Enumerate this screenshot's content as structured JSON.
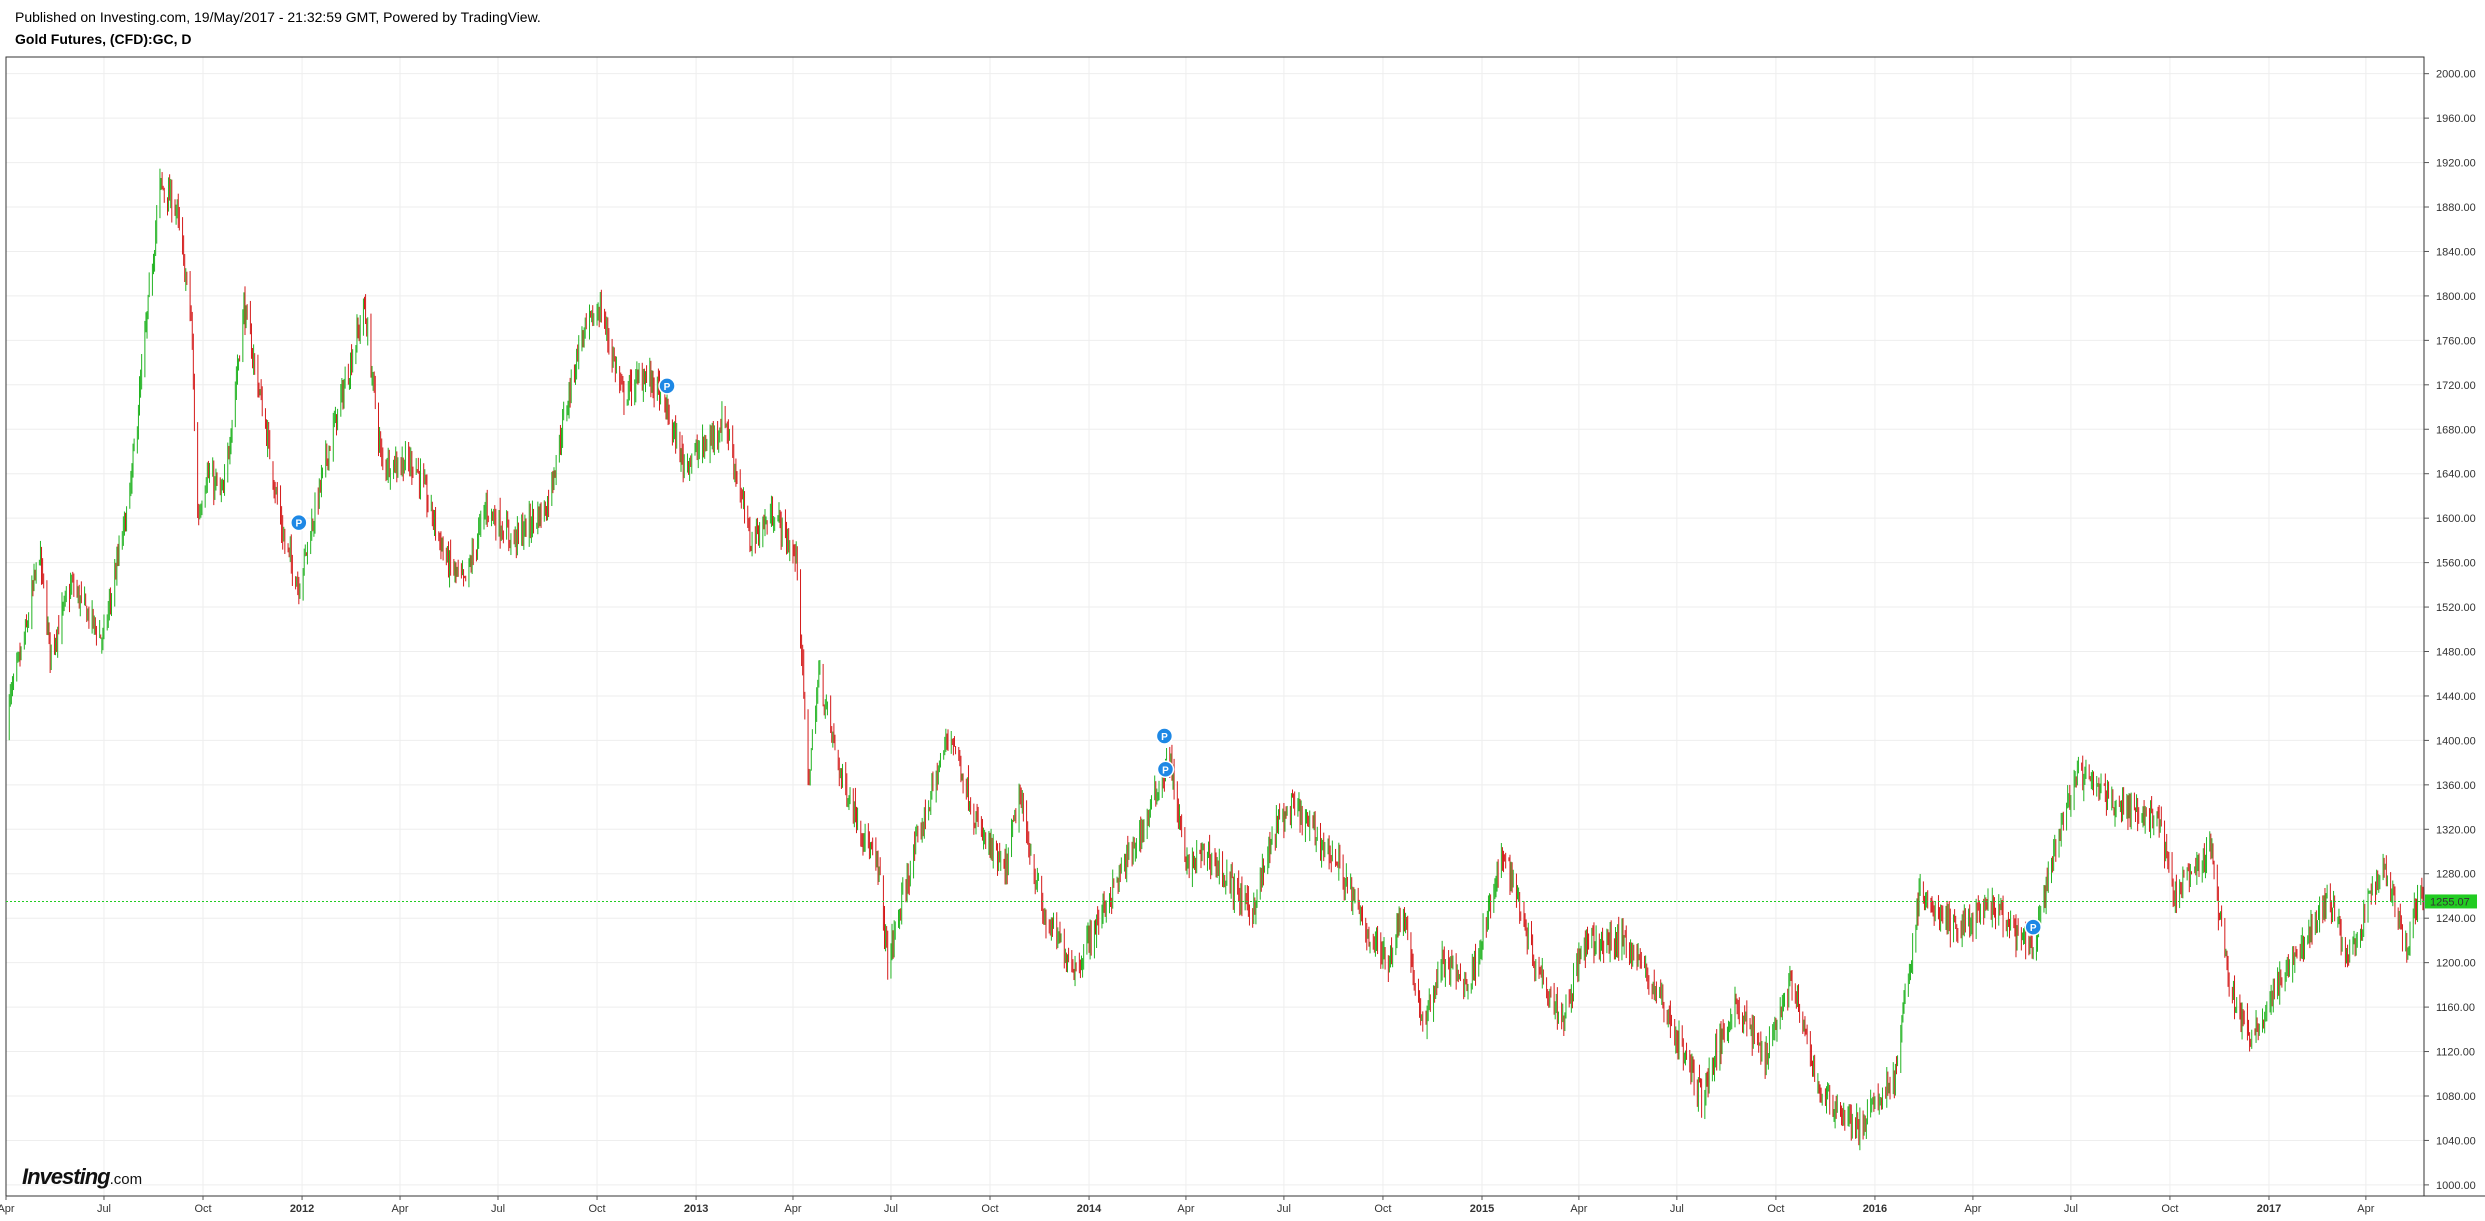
{
  "header": {
    "published": "Published on Investing.com, 19/May/2017 - 21:32:59 GMT, Powered by TradingView.",
    "title": "Gold Futures, (CFD):GC, D"
  },
  "logo": {
    "brand": "Investing",
    "domain": ".com"
  },
  "colors": {
    "up": "#22b322",
    "down": "#d41a1a",
    "grid": "#eeeeee",
    "last_price_line": "#22cc22",
    "marker": "#1e88e5"
  },
  "chart_data": {
    "type": "candlestick",
    "symbol": "GC",
    "interval": "D",
    "ylim": [
      990,
      2015
    ],
    "y_ticks": [
      "2000.00",
      "1960.00",
      "1920.00",
      "1880.00",
      "1840.00",
      "1800.00",
      "1760.00",
      "1720.00",
      "1680.00",
      "1640.00",
      "1600.00",
      "1560.00",
      "1520.00",
      "1480.00",
      "1440.00",
      "1400.00",
      "1360.00",
      "1320.00",
      "1280.00",
      "1240.00",
      "1200.00",
      "1160.00",
      "1120.00",
      "1080.00",
      "1040.00",
      "1000.00"
    ],
    "x_range": [
      "2011-04-01",
      "2017-05-25"
    ],
    "x_ticks": [
      {
        "label": "Apr",
        "date": "2011-04-01",
        "bold": false
      },
      {
        "label": "Jul",
        "date": "2011-07-01",
        "bold": false
      },
      {
        "label": "Oct",
        "date": "2011-10-01",
        "bold": false
      },
      {
        "label": "2012",
        "date": "2012-01-01",
        "bold": true
      },
      {
        "label": "Apr",
        "date": "2012-04-01",
        "bold": false
      },
      {
        "label": "Jul",
        "date": "2012-07-01",
        "bold": false
      },
      {
        "label": "Oct",
        "date": "2012-10-01",
        "bold": false
      },
      {
        "label": "2013",
        "date": "2013-01-01",
        "bold": true
      },
      {
        "label": "Apr",
        "date": "2013-04-01",
        "bold": false
      },
      {
        "label": "Jul",
        "date": "2013-07-01",
        "bold": false
      },
      {
        "label": "Oct",
        "date": "2013-10-01",
        "bold": false
      },
      {
        "label": "2014",
        "date": "2014-01-01",
        "bold": true
      },
      {
        "label": "Apr",
        "date": "2014-04-01",
        "bold": false
      },
      {
        "label": "Jul",
        "date": "2014-07-01",
        "bold": false
      },
      {
        "label": "Oct",
        "date": "2014-10-01",
        "bold": false
      },
      {
        "label": "2015",
        "date": "2015-01-01",
        "bold": true
      },
      {
        "label": "Apr",
        "date": "2015-04-01",
        "bold": false
      },
      {
        "label": "Jul",
        "date": "2015-07-01",
        "bold": false
      },
      {
        "label": "Oct",
        "date": "2015-10-01",
        "bold": false
      },
      {
        "label": "2016",
        "date": "2016-01-01",
        "bold": true
      },
      {
        "label": "Apr",
        "date": "2016-04-01",
        "bold": false
      },
      {
        "label": "Jul",
        "date": "2016-07-01",
        "bold": false
      },
      {
        "label": "Oct",
        "date": "2016-10-01",
        "bold": false
      },
      {
        "label": "2017",
        "date": "2017-01-01",
        "bold": true
      },
      {
        "label": "Apr",
        "date": "2017-04-01",
        "bold": false
      }
    ],
    "last_price": 1255.07,
    "last_price_label": "1255.07",
    "price_path": [
      [
        "2011-04-01",
        1420
      ],
      [
        "2011-04-20",
        1500
      ],
      [
        "2011-05-02",
        1570
      ],
      [
        "2011-05-12",
        1480
      ],
      [
        "2011-06-01",
        1540
      ],
      [
        "2011-06-30",
        1490
      ],
      [
        "2011-07-25",
        1620
      ],
      [
        "2011-08-10",
        1780
      ],
      [
        "2011-08-22",
        1900
      ],
      [
        "2011-09-06",
        1880
      ],
      [
        "2011-09-20",
        1780
      ],
      [
        "2011-09-26",
        1600
      ],
      [
        "2011-10-04",
        1640
      ],
      [
        "2011-10-20",
        1620
      ],
      [
        "2011-11-08",
        1790
      ],
      [
        "2011-11-25",
        1700
      ],
      [
        "2011-12-15",
        1580
      ],
      [
        "2011-12-29",
        1540
      ],
      [
        "2012-01-25",
        1660
      ],
      [
        "2012-02-28",
        1790
      ],
      [
        "2012-03-15",
        1650
      ],
      [
        "2012-04-15",
        1650
      ],
      [
        "2012-05-15",
        1560
      ],
      [
        "2012-05-31",
        1540
      ],
      [
        "2012-06-20",
        1610
      ],
      [
        "2012-07-15",
        1580
      ],
      [
        "2012-08-15",
        1610
      ],
      [
        "2012-09-15",
        1760
      ],
      [
        "2012-10-04",
        1790
      ],
      [
        "2012-10-25",
        1710
      ],
      [
        "2012-11-15",
        1730
      ],
      [
        "2012-11-30",
        1710
      ],
      [
        "2012-12-20",
        1650
      ],
      [
        "2013-01-10",
        1665
      ],
      [
        "2013-01-28",
        1690
      ],
      [
        "2013-02-20",
        1580
      ],
      [
        "2013-03-15",
        1605
      ],
      [
        "2013-04-05",
        1560
      ],
      [
        "2013-04-15",
        1360
      ],
      [
        "2013-04-25",
        1460
      ],
      [
        "2013-05-15",
        1370
      ],
      [
        "2013-06-20",
        1280
      ],
      [
        "2013-06-28",
        1200
      ],
      [
        "2013-07-20",
        1290
      ],
      [
        "2013-08-25",
        1410
      ],
      [
        "2013-09-20",
        1320
      ],
      [
        "2013-10-15",
        1280
      ],
      [
        "2013-10-28",
        1350
      ],
      [
        "2013-11-20",
        1240
      ],
      [
        "2013-12-20",
        1195
      ],
      [
        "2014-01-15",
        1250
      ],
      [
        "2014-02-20",
        1320
      ],
      [
        "2014-03-17",
        1385
      ],
      [
        "2014-04-01",
        1285
      ],
      [
        "2014-04-20",
        1300
      ],
      [
        "2014-06-01",
        1245
      ],
      [
        "2014-06-25",
        1325
      ],
      [
        "2014-07-10",
        1340
      ],
      [
        "2014-08-20",
        1290
      ],
      [
        "2014-09-15",
        1230
      ],
      [
        "2014-10-05",
        1200
      ],
      [
        "2014-10-20",
        1250
      ],
      [
        "2014-11-06",
        1140
      ],
      [
        "2014-11-25",
        1200
      ],
      [
        "2014-12-20",
        1180
      ],
      [
        "2015-01-22",
        1300
      ],
      [
        "2015-02-20",
        1200
      ],
      [
        "2015-03-17",
        1150
      ],
      [
        "2015-04-05",
        1215
      ],
      [
        "2015-05-15",
        1220
      ],
      [
        "2015-06-15",
        1170
      ],
      [
        "2015-07-24",
        1080
      ],
      [
        "2015-08-24",
        1165
      ],
      [
        "2015-09-20",
        1115
      ],
      [
        "2015-10-15",
        1185
      ],
      [
        "2015-11-10",
        1085
      ],
      [
        "2015-12-17",
        1050
      ],
      [
        "2016-01-20",
        1100
      ],
      [
        "2016-02-11",
        1260
      ],
      [
        "2016-03-15",
        1230
      ],
      [
        "2016-04-20",
        1250
      ],
      [
        "2016-05-25",
        1210
      ],
      [
        "2016-06-24",
        1330
      ],
      [
        "2016-07-06",
        1370
      ],
      [
        "2016-08-20",
        1340
      ],
      [
        "2016-09-20",
        1330
      ],
      [
        "2016-10-05",
        1260
      ],
      [
        "2016-11-08",
        1300
      ],
      [
        "2016-11-25",
        1180
      ],
      [
        "2016-12-15",
        1130
      ],
      [
        "2017-01-10",
        1180
      ],
      [
        "2017-02-27",
        1260
      ],
      [
        "2017-03-15",
        1200
      ],
      [
        "2017-04-17",
        1290
      ],
      [
        "2017-05-09",
        1215
      ],
      [
        "2017-05-19",
        1255
      ]
    ],
    "markers": [
      {
        "label": "P",
        "date": "2011-12-29",
        "price": 1596
      },
      {
        "label": "P",
        "date": "2012-12-05",
        "price": 1719
      },
      {
        "label": "P",
        "date": "2014-03-12",
        "price": 1404
      },
      {
        "label": "P",
        "date": "2014-03-13",
        "price": 1374
      },
      {
        "label": "P",
        "date": "2016-05-27",
        "price": 1232
      }
    ]
  }
}
